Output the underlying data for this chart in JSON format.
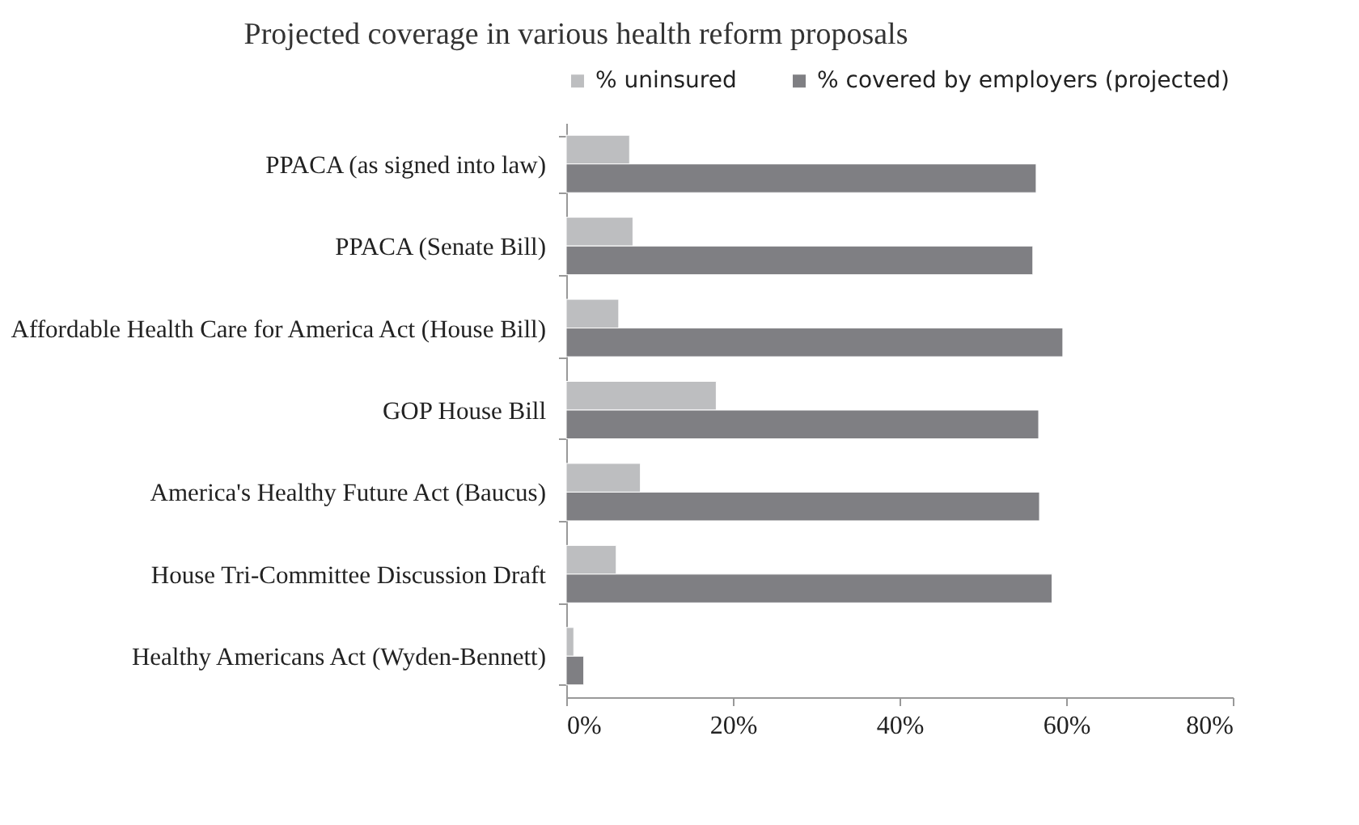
{
  "chart_data": {
    "type": "bar",
    "orientation": "horizontal",
    "title": "Projected coverage in various health reform proposals",
    "categories": [
      "PPACA (as signed into law)",
      "PPACA (Senate Bill)",
      "Affordable Health Care for America Act (House Bill)",
      "GOP House Bill",
      "America's Healthy Future Act (Baucus)",
      "House Tri-Committee Discussion Draft",
      "Healthy Americans Act (Wyden-Bennett)"
    ],
    "series": [
      {
        "name": "% uninsured",
        "color": "#bdbec0",
        "values": [
          7.6,
          8.0,
          6.3,
          18.0,
          8.9,
          6.0,
          0.9
        ]
      },
      {
        "name": "% covered by employers (projected)",
        "color": "#7f7f83",
        "values": [
          56.4,
          56.0,
          59.6,
          56.7,
          56.8,
          58.3,
          2.1
        ]
      }
    ],
    "xlim": [
      0,
      80
    ],
    "xticks": [
      {
        "value": 0,
        "label": "0%"
      },
      {
        "value": 20,
        "label": "20%"
      },
      {
        "value": 40,
        "label": "40%"
      },
      {
        "value": 60,
        "label": "60%"
      },
      {
        "value": 80,
        "label": "80%"
      }
    ],
    "grid": false,
    "legend": "top"
  }
}
